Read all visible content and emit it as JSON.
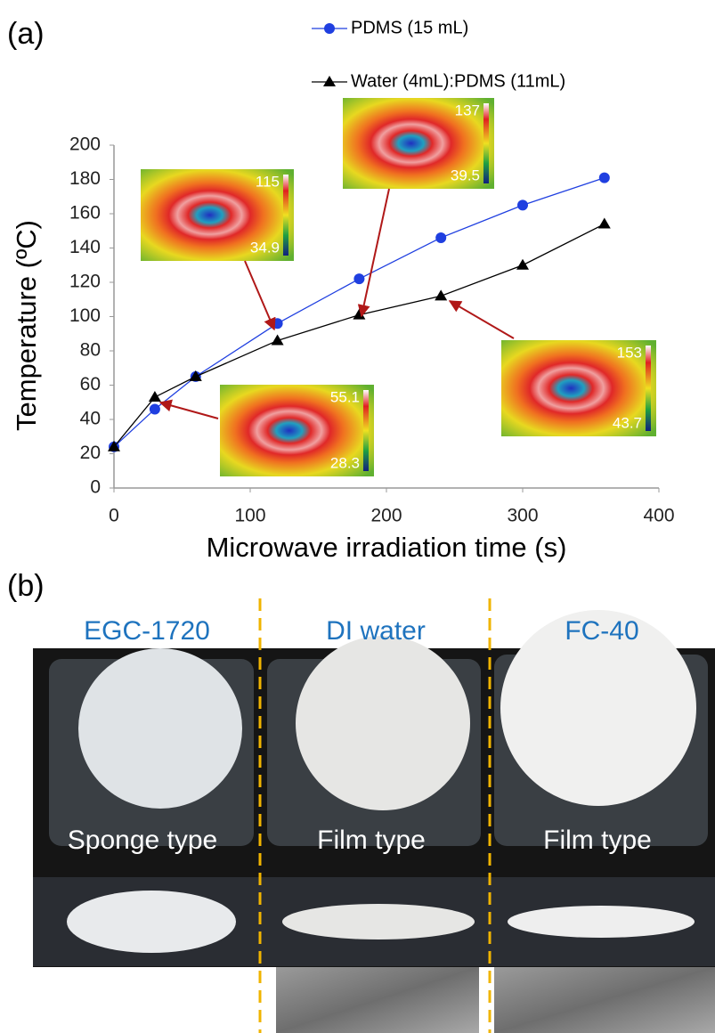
{
  "panel_a": {
    "label": "(a)"
  },
  "chart_data": {
    "type": "line",
    "x": [
      0,
      30,
      60,
      120,
      180,
      240,
      300,
      360
    ],
    "series": [
      {
        "name": "PDMS (15 mL)",
        "color": "#1f3fe0",
        "marker": "circle",
        "values": [
          24,
          46,
          65,
          96,
          122,
          146,
          165,
          181
        ]
      },
      {
        "name": "Water (4mL):PDMS (11mL)",
        "color": "#000000",
        "marker": "triangle",
        "values": [
          24,
          53,
          65,
          86,
          101,
          112,
          130,
          154
        ]
      }
    ],
    "xlabel": "Microwave irradiation time (s)",
    "ylabel": "Temperature (ºC)",
    "xlim": [
      0,
      400
    ],
    "xticks": [
      0,
      100,
      200,
      300,
      400
    ],
    "ylim": [
      0,
      200
    ],
    "yticks": [
      0,
      20,
      40,
      60,
      80,
      100,
      120,
      140,
      160,
      180,
      200
    ],
    "grid": false,
    "annotations": [
      {
        "max": "115",
        "min": "34.9"
      },
      {
        "max": "137",
        "min": "39.5"
      },
      {
        "max": "55.1",
        "min": "28.3"
      },
      {
        "max": "153",
        "min": "43.7"
      }
    ]
  },
  "panel_b": {
    "label": "(b)",
    "columns": [
      {
        "title": "EGC-1720",
        "type_label": "Sponge type"
      },
      {
        "title": "DI water",
        "type_label": "Film type"
      },
      {
        "title": "FC-40",
        "type_label": "Film type"
      }
    ]
  }
}
